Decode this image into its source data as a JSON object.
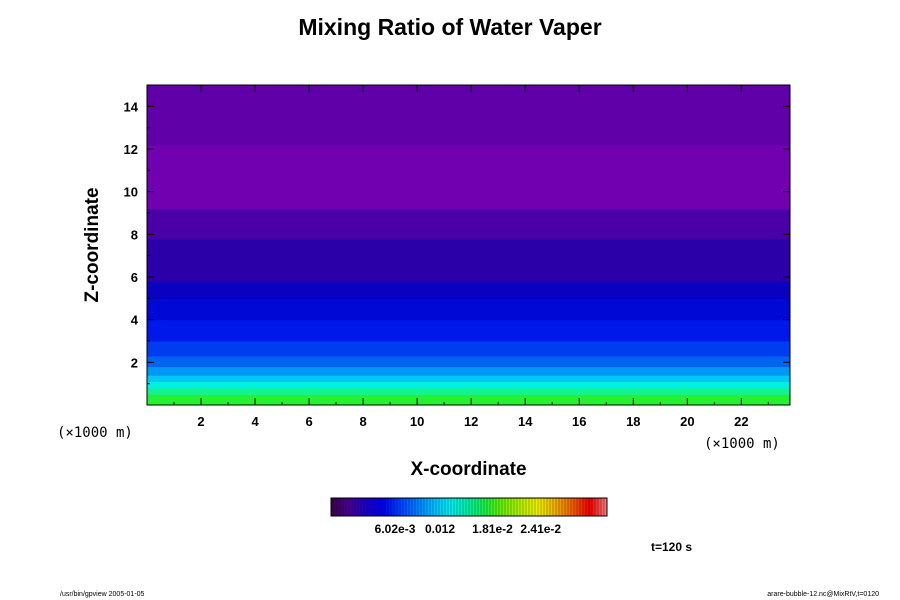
{
  "chart_data": {
    "type": "heatmap",
    "title": "Mixing Ratio of Water Vaper",
    "xlabel": "X-coordinate",
    "ylabel": "Z-coordinate",
    "x_unit": "(×1000 m)",
    "y_unit": "(×1000 m)",
    "xlim": [
      0,
      23.8
    ],
    "ylim": [
      0,
      15
    ],
    "x_ticks": [
      2,
      4,
      6,
      8,
      10,
      12,
      14,
      16,
      18,
      20,
      22
    ],
    "y_ticks": [
      2,
      4,
      6,
      8,
      10,
      12,
      14
    ],
    "z_bands": [
      {
        "z_from": 0.0,
        "z_to": 0.5,
        "color": "#24f230"
      },
      {
        "z_from": 0.5,
        "z_to": 0.8,
        "color": "#14f293"
      },
      {
        "z_from": 0.8,
        "z_to": 1.1,
        "color": "#00f0e0"
      },
      {
        "z_from": 1.1,
        "z_to": 1.4,
        "color": "#00c8f2"
      },
      {
        "z_from": 1.4,
        "z_to": 1.8,
        "color": "#0096f4"
      },
      {
        "z_from": 1.8,
        "z_to": 2.3,
        "color": "#0064f0"
      },
      {
        "z_from": 2.3,
        "z_to": 3.0,
        "color": "#003cf0"
      },
      {
        "z_from": 3.0,
        "z_to": 4.0,
        "color": "#0018ea"
      },
      {
        "z_from": 4.0,
        "z_to": 5.0,
        "color": "#0008d6"
      },
      {
        "z_from": 5.0,
        "z_to": 5.8,
        "color": "#0a00c0"
      },
      {
        "z_from": 5.8,
        "z_to": 7.8,
        "color": "#2c00a8"
      },
      {
        "z_from": 7.8,
        "z_to": 9.2,
        "color": "#4a00a6"
      },
      {
        "z_from": 9.2,
        "z_to": 12.2,
        "color": "#7000b0"
      },
      {
        "z_from": 12.2,
        "z_to": 15.0,
        "color": "#6000a8"
      }
    ],
    "colorbar": {
      "tick_labels": [
        "6.02e-3",
        "0.012",
        "1.81e-2",
        "2.41e-2"
      ],
      "tick_fractions": [
        0.232,
        0.395,
        0.585,
        0.76
      ],
      "colors": [
        "#3a004a",
        "#4a0090",
        "#1a00c8",
        "#0000f0",
        "#0040ff",
        "#0080ff",
        "#00c0ff",
        "#00f0f0",
        "#00f0a0",
        "#20f040",
        "#70f000",
        "#b8f000",
        "#f0f000",
        "#f0b000",
        "#f06000",
        "#f00000",
        "#f08080"
      ]
    }
  },
  "annotations": {
    "time": "t=120 s",
    "footer_left": "/usr/bin/gpview 2005-01-05",
    "footer_right": "arare-bubble-12.nc@MixRtV,t=0120"
  }
}
